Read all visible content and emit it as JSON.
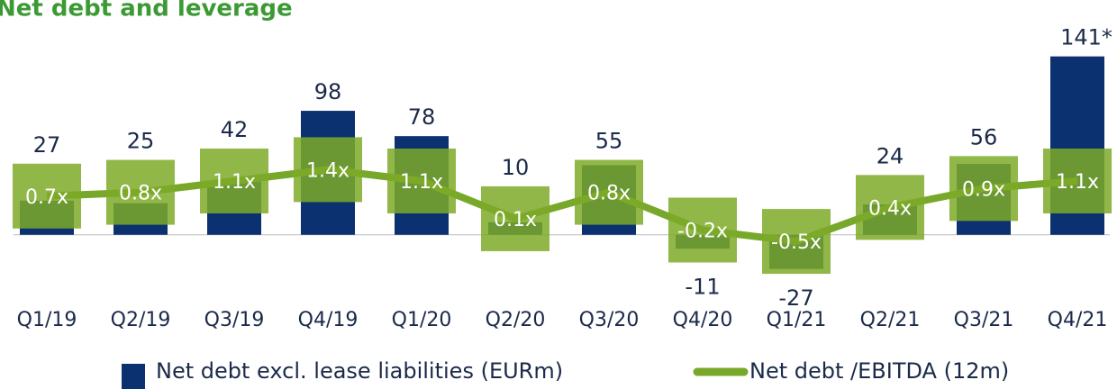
{
  "chart_data": {
    "type": "bar",
    "title": "Net debt and leverage",
    "categories": [
      "Q1/19",
      "Q2/19",
      "Q3/19",
      "Q4/19",
      "Q1/20",
      "Q2/20",
      "Q3/20",
      "Q4/20",
      "Q1/21",
      "Q2/21",
      "Q3/21",
      "Q4/21"
    ],
    "series": [
      {
        "name": "Net debt excl. lease liabilities (EURm)",
        "type": "bar",
        "color": "#0b3170",
        "values": [
          27,
          25,
          42,
          98,
          78,
          10,
          55,
          -11,
          -27,
          24,
          56,
          141
        ],
        "value_labels": [
          "27",
          "25",
          "42",
          "98",
          "78",
          "10",
          "55",
          "-11",
          "-27",
          "24",
          "56",
          "141*"
        ]
      },
      {
        "name": "Net debt /EBITDA (12m)",
        "type": "line",
        "axis": "y2",
        "color": "#78a82a",
        "values": [
          0.7,
          0.8,
          1.1,
          1.4,
          1.1,
          0.1,
          0.8,
          -0.2,
          -0.5,
          0.4,
          0.9,
          1.1
        ],
        "value_labels": [
          "0.7x",
          "0.8x",
          "1.1x",
          "1.4x",
          "1.1x",
          "0.1x",
          "0.8x",
          "-0.2x",
          "-0.5x",
          "0.4x",
          "0.9x",
          "1.1x"
        ]
      }
    ],
    "ylim": [
      -50,
      150
    ],
    "y2lim": [
      -2,
      4.7
    ],
    "legend": "bottom"
  }
}
